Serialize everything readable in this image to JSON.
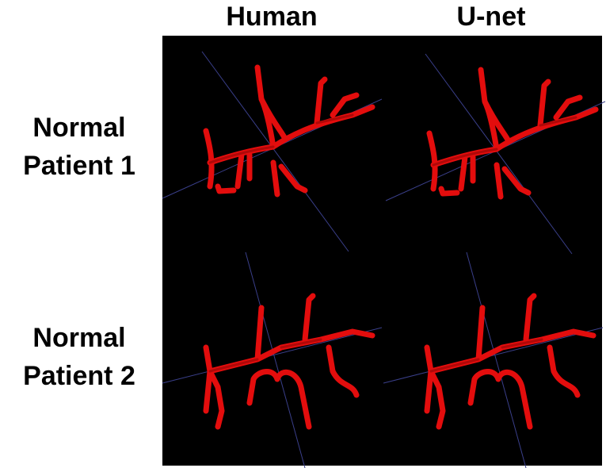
{
  "columns": [
    "Human",
    "U-net"
  ],
  "rows": [
    [
      "Normal",
      "Patient 1"
    ],
    [
      "Normal",
      "Patient 2"
    ]
  ]
}
